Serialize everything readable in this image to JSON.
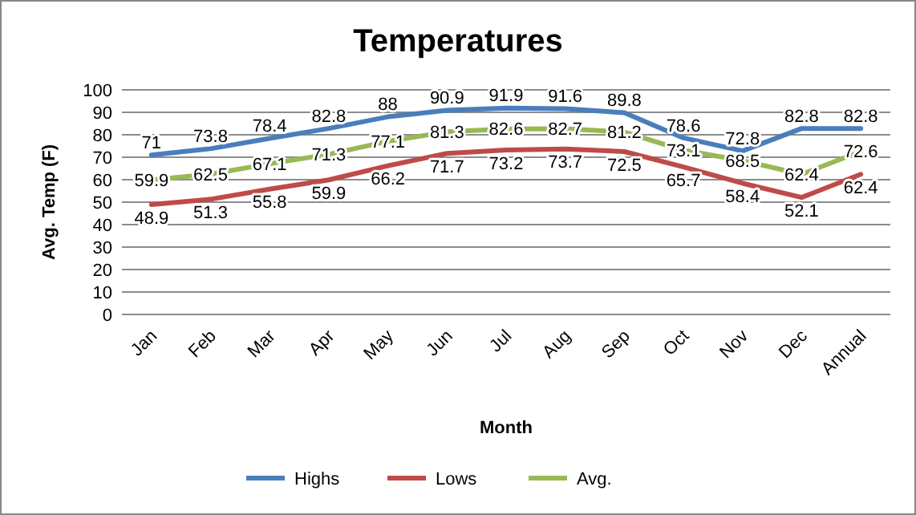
{
  "chart_data": {
    "type": "line",
    "title": "Temperatures",
    "xlabel": "Month",
    "ylabel": "Avg. Temp (F)",
    "categories": [
      "Jan",
      "Feb",
      "Mar",
      "Apr",
      "May",
      "Jun",
      "Jul",
      "Aug",
      "Sep",
      "Oct",
      "Nov",
      "Dec",
      "Annual"
    ],
    "series": [
      {
        "name": "Highs",
        "color": "#4a7ebb",
        "values": [
          71,
          73.8,
          78.4,
          82.8,
          88,
          90.9,
          91.9,
          91.6,
          89.8,
          78.6,
          72.8,
          82.8,
          82.8
        ]
      },
      {
        "name": "Lows",
        "color": "#be4b48",
        "values": [
          48.9,
          51.3,
          55.8,
          59.9,
          66.2,
          71.7,
          73.2,
          73.7,
          72.5,
          65.7,
          58.4,
          52.1,
          62.4
        ]
      },
      {
        "name": "Avg.",
        "color": "#98b954",
        "values": [
          59.9,
          62.5,
          67.1,
          71.3,
          77.1,
          81.3,
          82.6,
          82.7,
          81.2,
          73.1,
          68.5,
          62.4,
          72.6
        ]
      }
    ],
    "ylim": [
      0,
      100
    ],
    "yticks": [
      0,
      10,
      20,
      30,
      40,
      50,
      60,
      70,
      80,
      90,
      100
    ],
    "grid": "y",
    "legend": "bottom",
    "data_labels": true,
    "marker": "none",
    "line_style": "solid"
  }
}
